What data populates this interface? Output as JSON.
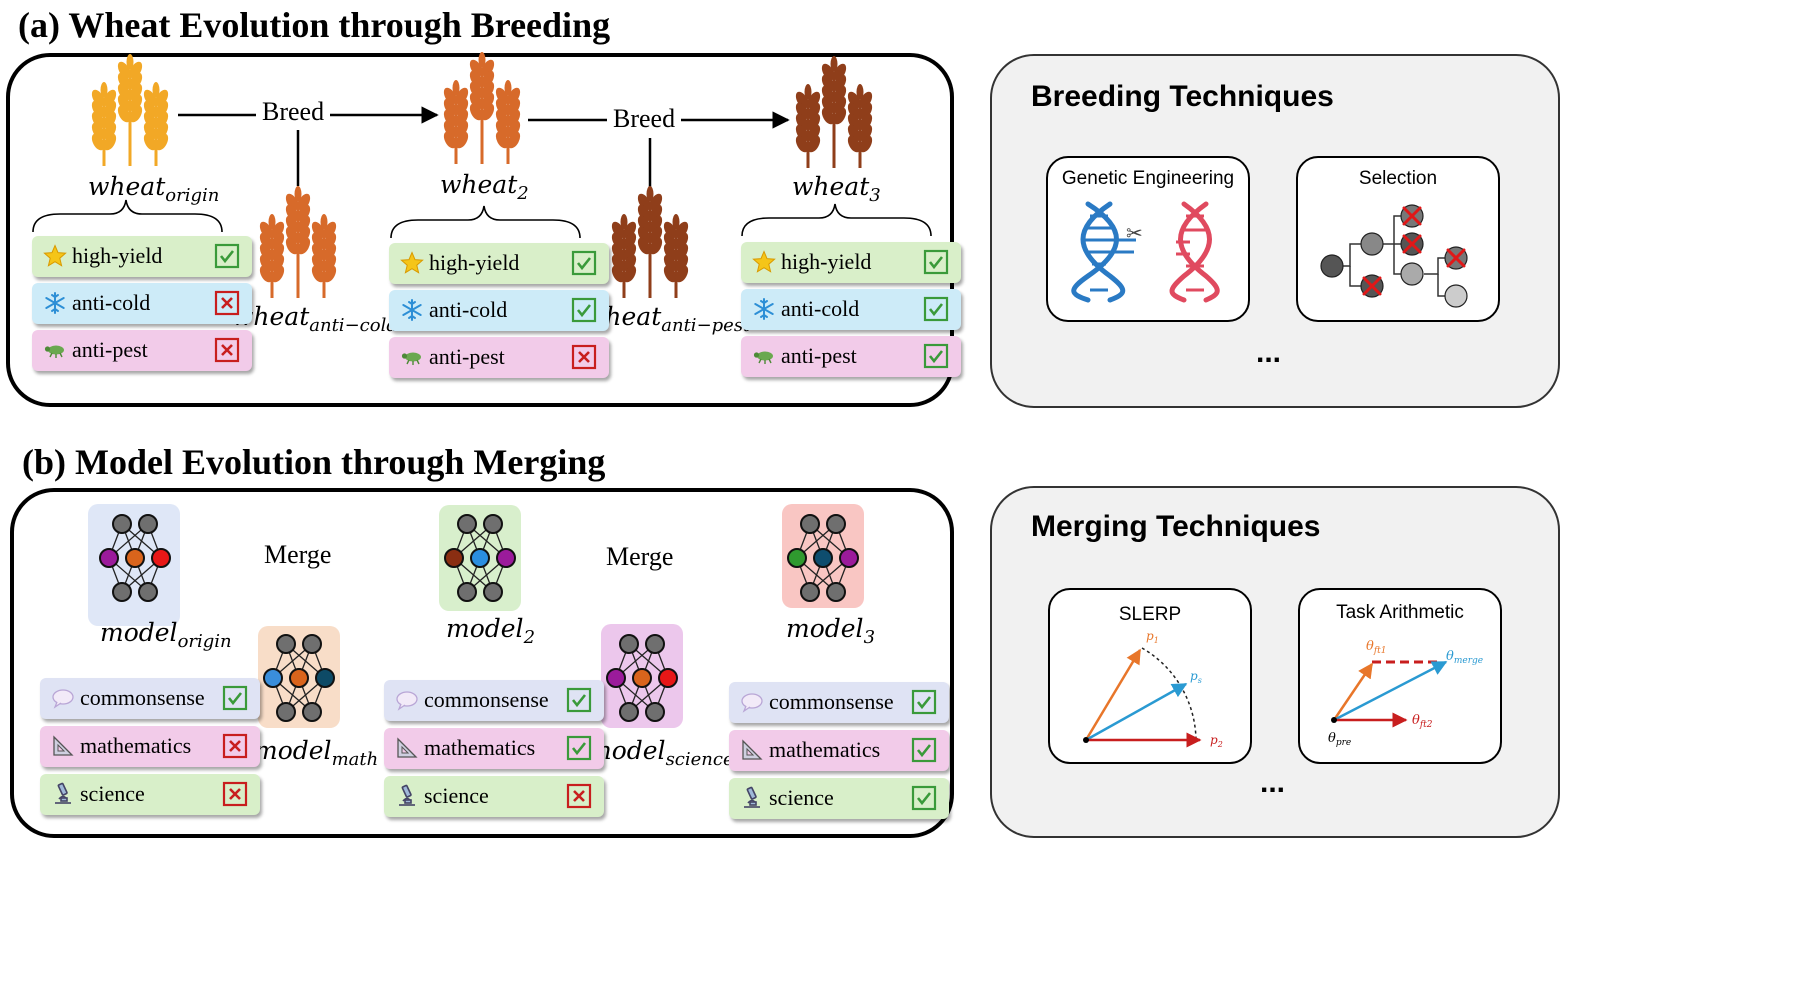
{
  "section_a": {
    "title": "(a) Wheat Evolution through Breeding",
    "op_label": "Breed",
    "wheat_origin": {
      "base": "wheat",
      "sub": "origin"
    },
    "wheat_2": {
      "base": "wheat",
      "sub": "2"
    },
    "wheat_3": {
      "base": "wheat",
      "sub": "3"
    },
    "wheat_anti_cold": {
      "base": "wheat",
      "sub": "anti−cold"
    },
    "wheat_anti_pest": {
      "base": "wheat",
      "sub": "anti−pest"
    },
    "traits": [
      "high-yield",
      "anti-cold",
      "anti-pest"
    ],
    "trait_icons": [
      "star-icon",
      "snowflake-icon",
      "bug-icon"
    ],
    "status": {
      "origin": [
        "check",
        "cross",
        "cross"
      ],
      "wheat_2": [
        "check",
        "check",
        "cross"
      ],
      "wheat_3": [
        "check",
        "check",
        "check"
      ]
    }
  },
  "breeding_techniques": {
    "title": "Breeding Techniques",
    "cards": [
      "Genetic Engineering",
      "Selection"
    ],
    "more": "..."
  },
  "section_b": {
    "title": "(b) Model Evolution through Merging",
    "op_label": "Merge",
    "model_origin": {
      "base": "model",
      "sub": "origin"
    },
    "model_2": {
      "base": "model",
      "sub": "2"
    },
    "model_3": {
      "base": "model",
      "sub": "3"
    },
    "model_math": {
      "base": "model",
      "sub": "math"
    },
    "model_science": {
      "base": "model",
      "sub": "science"
    },
    "skills": [
      "commonsense",
      "mathematics",
      "science"
    ],
    "skill_icons": [
      "speech-bubble-icon",
      "set-square-icon",
      "microscope-icon"
    ],
    "status": {
      "origin": [
        "check",
        "cross",
        "cross"
      ],
      "model_2": [
        "check",
        "check",
        "cross"
      ],
      "model_3": [
        "check",
        "check",
        "check"
      ]
    }
  },
  "merging_techniques": {
    "title": "Merging Techniques",
    "cards": [
      "SLERP",
      "Task Arithmetic"
    ],
    "slerp_labels": {
      "p1": "p",
      "p1_sub": "1",
      "ps": "p",
      "ps_sub": "s",
      "p2": "p",
      "p2_sub": "2"
    },
    "ta_labels": {
      "ft1": "θ",
      "ft1_sub": "ft1",
      "merge": "θ",
      "merge_sub": "merge",
      "ft2": "θ",
      "ft2_sub": "ft2",
      "pre": "θ",
      "pre_sub": "pre"
    },
    "more": "..."
  },
  "colors": {
    "check": "#3a9a3a",
    "cross": "#c81e1e",
    "wheat_gold": "#f2a826",
    "wheat_orange": "#d76a2a",
    "wheat_brown": "#8f3e1a",
    "dna_blue": "#2a7ac4",
    "dna_red": "#e04a5f"
  }
}
